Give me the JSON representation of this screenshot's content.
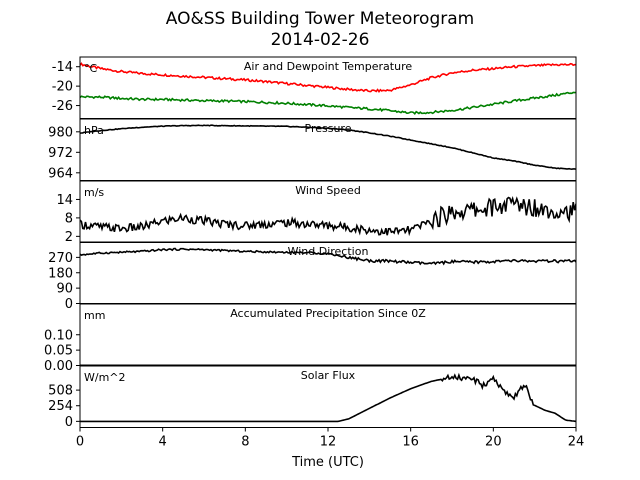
{
  "figure": {
    "title_line1": "AO&SS Building Tower Meteorogram",
    "title_line2": "2014-02-26",
    "xlabel": "Time (UTC)"
  },
  "chart_data": [
    {
      "type": "line",
      "title": "Air and Dewpoint Temperature",
      "unit": "°C",
      "x": [
        0,
        1,
        2,
        3,
        4,
        5,
        6,
        7,
        8,
        9,
        10,
        11,
        12,
        13,
        14,
        15,
        16,
        17,
        18,
        19,
        20,
        21,
        22,
        23,
        24
      ],
      "series": [
        {
          "color": "#ff0000",
          "values": [
            -13.2,
            -14.6,
            -15.5,
            -16.1,
            -16.5,
            -16.9,
            -17.3,
            -17.7,
            -18.1,
            -18.6,
            -19.2,
            -19.8,
            -20.4,
            -21.0,
            -21.5,
            -21.3,
            -19.6,
            -17.4,
            -15.9,
            -15.1,
            -14.6,
            -14.0,
            -13.7,
            -13.4,
            -13.3
          ]
        },
        {
          "color": "#008000",
          "values": [
            -23.3,
            -23.4,
            -23.8,
            -24.1,
            -24.1,
            -24.3,
            -24.5,
            -24.6,
            -24.8,
            -25.0,
            -25.3,
            -25.7,
            -26.1,
            -26.6,
            -27.0,
            -27.6,
            -28.3,
            -28.1,
            -27.5,
            -26.6,
            -25.6,
            -24.6,
            -23.7,
            -22.8,
            -21.8
          ]
        }
      ],
      "yticks": [
        -14,
        -20,
        -26
      ],
      "ylim": [
        -30,
        -11
      ]
    },
    {
      "type": "line",
      "title": "Pressure",
      "unit": "hPa",
      "x": [
        0,
        1,
        2,
        3,
        4,
        5,
        6,
        7,
        8,
        9,
        10,
        11,
        12,
        13,
        14,
        15,
        16,
        17,
        18,
        19,
        20,
        21,
        22,
        23,
        24
      ],
      "series": [
        {
          "color": "#000000",
          "values": [
            979.5,
            980.5,
            981.2,
            981.8,
            982.2,
            982.4,
            982.5,
            982.4,
            982.3,
            982.2,
            982.1,
            981.8,
            981.4,
            980.7,
            979.6,
            978.3,
            976.8,
            975.3,
            973.8,
            971.8,
            969.8,
            968.6,
            967.0,
            965.8,
            965.4
          ]
        }
      ],
      "yticks": [
        980,
        972,
        964
      ],
      "ylim": [
        961,
        985
      ]
    },
    {
      "type": "line",
      "title": "Wind Speed",
      "unit": "m/s",
      "x": [
        0,
        1,
        2,
        3,
        4,
        5,
        6,
        7,
        8,
        9,
        10,
        11,
        12,
        13,
        14,
        15,
        16,
        17,
        18,
        19,
        20,
        21,
        22,
        23,
        24
      ],
      "series": [
        {
          "color": "#000000",
          "values": [
            6.0,
            5.0,
            4.5,
            5.0,
            7.0,
            8.0,
            7.0,
            6.0,
            5.5,
            6.0,
            6.5,
            6.0,
            5.5,
            5.0,
            4.0,
            3.5,
            4.0,
            7.0,
            10.0,
            10.5,
            11.5,
            12.5,
            11.5,
            10.5,
            10.0
          ]
        }
      ],
      "yticks": [
        14,
        8,
        2
      ],
      "ylim": [
        0,
        20
      ]
    },
    {
      "type": "line",
      "title": "Wind Direction",
      "x": [
        0,
        1,
        2,
        3,
        4,
        5,
        6,
        7,
        8,
        9,
        10,
        11,
        12,
        13,
        14,
        15,
        16,
        17,
        18,
        19,
        20,
        21,
        22,
        23,
        24
      ],
      "series": [
        {
          "color": "#000000",
          "values": [
            285,
            295,
            300,
            305,
            315,
            318,
            315,
            310,
            305,
            302,
            300,
            298,
            292,
            270,
            250,
            248,
            240,
            232,
            245,
            242,
            245,
            250,
            248,
            247,
            248
          ]
        }
      ],
      "yticks": [
        270,
        180,
        90,
        0
      ],
      "ylim": [
        0,
        360
      ]
    },
    {
      "type": "line",
      "title": "Accumulated Precipitation Since 0Z",
      "unit": "mm",
      "x": [
        0,
        24
      ],
      "series": [
        {
          "color": "#000000",
          "values": [
            0,
            0
          ]
        }
      ],
      "yticks": [
        0.1,
        0.05,
        0.0
      ],
      "ylim": [
        0,
        0.2
      ]
    },
    {
      "type": "line",
      "title": "Solar Flux",
      "unit": "W/m^2",
      "x": [
        0,
        12.5,
        13,
        14,
        15,
        16,
        17,
        18,
        18.5,
        19,
        19.5,
        20,
        20.5,
        21,
        21.5,
        22,
        22.5,
        23,
        23.5,
        24
      ],
      "series": [
        {
          "color": "#000000",
          "values": [
            0,
            0,
            40,
            210,
            380,
            530,
            650,
            720,
            700,
            690,
            580,
            720,
            480,
            400,
            600,
            260,
            180,
            130,
            20,
            0
          ]
        }
      ],
      "yticks": [
        508,
        254,
        0
      ],
      "ylim": [
        -100,
        900
      ]
    }
  ],
  "xaxis": {
    "ticks": [
      0,
      4,
      8,
      12,
      16,
      20,
      24
    ],
    "xlim": [
      0,
      24
    ]
  }
}
